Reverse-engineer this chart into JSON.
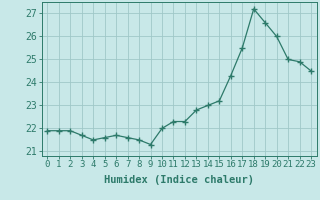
{
  "x": [
    0,
    1,
    2,
    3,
    4,
    5,
    6,
    7,
    8,
    9,
    10,
    11,
    12,
    13,
    14,
    15,
    16,
    17,
    18,
    19,
    20,
    21,
    22,
    23
  ],
  "y": [
    21.9,
    21.9,
    21.9,
    21.7,
    21.5,
    21.6,
    21.7,
    21.6,
    21.5,
    21.3,
    22.0,
    22.3,
    22.3,
    22.8,
    23.0,
    23.2,
    24.3,
    25.5,
    27.2,
    26.6,
    26.0,
    25.0,
    24.9,
    24.5
  ],
  "line_color": "#2d7a6a",
  "marker": "+",
  "marker_size": 4,
  "bg_color": "#c8e8e8",
  "grid_color": "#a0c8c8",
  "xlabel": "Humidex (Indice chaleur)",
  "ylim": [
    20.8,
    27.5
  ],
  "xlim": [
    -0.5,
    23.5
  ],
  "yticks": [
    21,
    22,
    23,
    24,
    25,
    26,
    27
  ],
  "xticks": [
    0,
    1,
    2,
    3,
    4,
    5,
    6,
    7,
    8,
    9,
    10,
    11,
    12,
    13,
    14,
    15,
    16,
    17,
    18,
    19,
    20,
    21,
    22,
    23
  ],
  "tick_color": "#2d7a6a",
  "label_fontsize": 6.5,
  "xlabel_fontsize": 7.5
}
